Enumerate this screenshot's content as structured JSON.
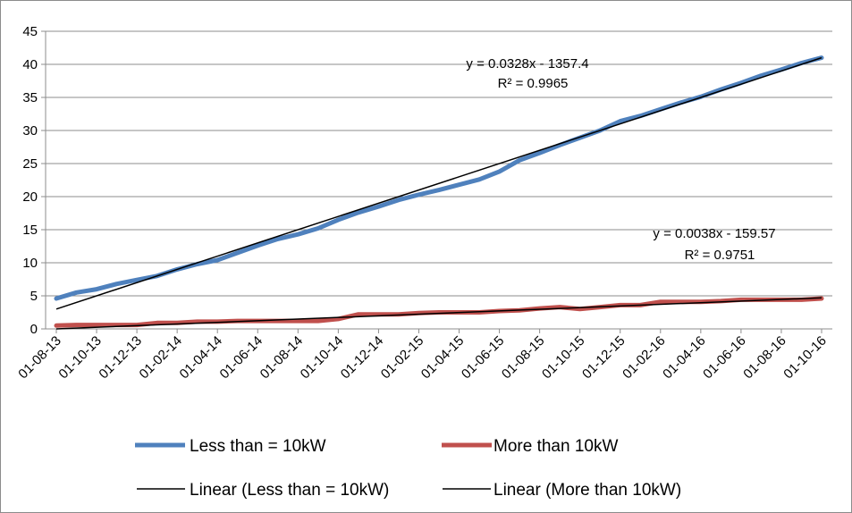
{
  "chart_data": {
    "type": "line",
    "y_ticks": [
      "0",
      "5",
      "10",
      "15",
      "20",
      "25",
      "30",
      "35",
      "40",
      "45"
    ],
    "ylim": [
      0,
      45
    ],
    "grid": true,
    "legend_position": "bottom",
    "x_tick_labels": [
      "01-08-13",
      "01-10-13",
      "01-12-13",
      "01-02-14",
      "01-04-14",
      "01-06-14",
      "01-08-14",
      "01-10-14",
      "01-12-14",
      "01-02-15",
      "01-04-15",
      "01-06-15",
      "01-08-15",
      "01-10-15",
      "01-12-15",
      "01-02-16",
      "01-04-16",
      "01-06-16",
      "01-08-16",
      "01-10-16"
    ],
    "x": [
      "01-08-13",
      "01-09-13",
      "01-10-13",
      "01-11-13",
      "01-12-13",
      "01-01-14",
      "01-02-14",
      "01-03-14",
      "01-04-14",
      "01-05-14",
      "01-06-14",
      "01-07-14",
      "01-08-14",
      "01-09-14",
      "01-10-14",
      "01-11-14",
      "01-12-14",
      "01-01-15",
      "01-02-15",
      "01-03-15",
      "01-04-15",
      "01-05-15",
      "01-06-15",
      "01-07-15",
      "01-08-15",
      "01-09-15",
      "01-10-15",
      "01-11-15",
      "01-12-15",
      "01-01-16",
      "01-02-16",
      "01-03-16",
      "01-04-16",
      "01-05-16",
      "01-06-16",
      "01-07-16",
      "01-08-16",
      "01-09-16",
      "01-10-16"
    ],
    "series": [
      {
        "name": "Less than = 10kW",
        "color": "#4f81bd",
        "values": [
          4.6,
          5.5,
          6.0,
          6.8,
          7.4,
          8.0,
          9.0,
          9.8,
          10.4,
          11.5,
          12.6,
          13.6,
          14.3,
          15.2,
          16.5,
          17.6,
          18.5,
          19.5,
          20.3,
          21.0,
          21.8,
          22.6,
          23.8,
          25.5,
          26.6,
          27.8,
          28.9,
          30.0,
          31.4,
          32.2,
          33.2,
          34.2,
          35.1,
          36.2,
          37.2,
          38.3,
          39.2,
          40.2,
          41.0
        ]
      },
      {
        "name": "More than 10kW",
        "color": "#c0504d",
        "values": [
          0.5,
          0.6,
          0.6,
          0.6,
          0.6,
          0.9,
          0.9,
          1.1,
          1.1,
          1.2,
          1.2,
          1.2,
          1.2,
          1.2,
          1.5,
          2.2,
          2.2,
          2.2,
          2.4,
          2.5,
          2.5,
          2.5,
          2.7,
          2.8,
          3.1,
          3.3,
          3.0,
          3.3,
          3.6,
          3.6,
          4.1,
          4.1,
          4.1,
          4.2,
          4.4,
          4.4,
          4.4,
          4.4,
          4.6
        ]
      }
    ],
    "trendlines": [
      {
        "name": "Linear (Less than = 10kW)",
        "color": "#000000",
        "start": 3.0,
        "end": 41.0,
        "equation": "y = 0.0328x - 1357.4",
        "r2": "R² = 0.9965"
      },
      {
        "name": "Linear (More than 10kW)",
        "color": "#000000",
        "start": 0.0,
        "end": 4.7,
        "equation": "y = 0.0038x - 159.57",
        "r2": "R² = 0.9751"
      }
    ]
  }
}
